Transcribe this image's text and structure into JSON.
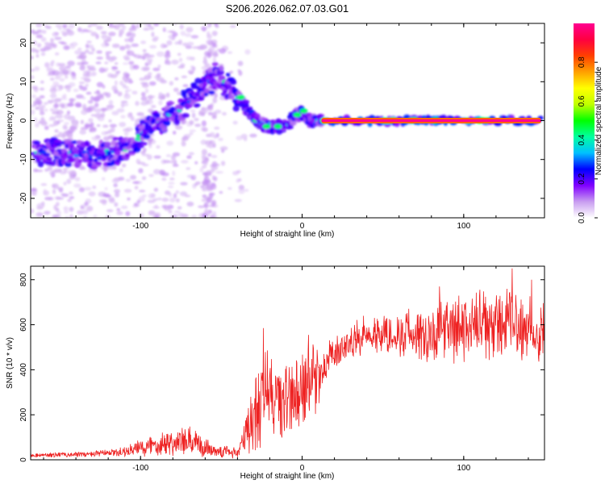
{
  "title": "S206.2026.062.07.03.G01",
  "chart_data": [
    {
      "type": "heatmap",
      "xlabel": "Height of straight line (km)",
      "ylabel": "Frequency (Hz)",
      "xlim": [
        -168,
        150
      ],
      "ylim": [
        -25,
        25
      ],
      "xticks": [
        -100,
        0,
        100
      ],
      "xtick_labels": [
        "-100",
        "0",
        "100"
      ],
      "yticks": [
        -20,
        -10,
        0,
        10,
        20
      ],
      "ytick_labels": [
        "-20",
        "-10",
        "0",
        "10",
        "20"
      ],
      "ridge": [
        {
          "x": -148,
          "y": -8
        },
        {
          "x": -140,
          "y": -8.5
        },
        {
          "x": -130,
          "y": -9
        },
        {
          "x": -120,
          "y": -8.5
        },
        {
          "x": -110,
          "y": -7
        },
        {
          "x": -100,
          "y": -4
        },
        {
          "x": -90,
          "y": -1
        },
        {
          "x": -80,
          "y": 2
        },
        {
          "x": -70,
          "y": 5
        },
        {
          "x": -60,
          "y": 9
        },
        {
          "x": -52,
          "y": 12
        },
        {
          "x": -45,
          "y": 8
        },
        {
          "x": -38,
          "y": 5
        },
        {
          "x": -30,
          "y": 1
        },
        {
          "x": -25,
          "y": -1
        },
        {
          "x": -18,
          "y": -1.5
        },
        {
          "x": -10,
          "y": -1.5
        },
        {
          "x": -5,
          "y": 1
        },
        {
          "x": 0,
          "y": 2
        },
        {
          "x": 5,
          "y": 0
        },
        {
          "x": 12,
          "y": 0
        },
        {
          "x": 150,
          "y": 0
        }
      ],
      "line_segment": {
        "x_start": 12,
        "x_end": 148,
        "y": 0,
        "level": 1.0
      },
      "colorbar": {
        "label": "Normalized spectral amplitude",
        "ticks": [
          0.0,
          0.2,
          0.4,
          0.6,
          0.8
        ],
        "tick_labels": [
          "0.0",
          "0.2",
          "0.4",
          "0.6",
          "0.8"
        ],
        "range": [
          0.0,
          1.0
        ],
        "colors": [
          "#ffffff",
          "#c89cf0",
          "#8000ff",
          "#0000ff",
          "#00c0ff",
          "#00ffa0",
          "#00ff00",
          "#c0ff00",
          "#ffff00",
          "#ffa000",
          "#ff4000",
          "#ff0040",
          "#ff0090"
        ]
      }
    },
    {
      "type": "line",
      "xlabel": "Height of straight line (km)",
      "ylabel": "SNR (10 * v/v)",
      "xlim": [
        -168,
        150
      ],
      "ylim": [
        0,
        860
      ],
      "xticks": [
        -100,
        0,
        100
      ],
      "xtick_labels": [
        "-100",
        "0",
        "100"
      ],
      "yticks": [
        0,
        200,
        400,
        600,
        800
      ],
      "ytick_labels": [
        "0",
        "200",
        "400",
        "600",
        "800"
      ],
      "color": "#ee2222",
      "envelope": [
        {
          "x": -168,
          "base": 20,
          "amp": 12
        },
        {
          "x": -130,
          "base": 25,
          "amp": 15
        },
        {
          "x": -110,
          "base": 35,
          "amp": 25
        },
        {
          "x": -95,
          "base": 60,
          "amp": 60
        },
        {
          "x": -85,
          "base": 80,
          "amp": 70
        },
        {
          "x": -70,
          "base": 75,
          "amp": 80
        },
        {
          "x": -55,
          "base": 45,
          "amp": 40
        },
        {
          "x": -40,
          "base": 30,
          "amp": 30
        },
        {
          "x": -32,
          "base": 150,
          "amp": 180
        },
        {
          "x": -24,
          "base": 300,
          "amp": 260
        },
        {
          "x": -15,
          "base": 260,
          "amp": 260
        },
        {
          "x": -5,
          "base": 280,
          "amp": 200
        },
        {
          "x": 0,
          "base": 300,
          "amp": 230
        },
        {
          "x": 8,
          "base": 360,
          "amp": 190
        },
        {
          "x": 15,
          "base": 430,
          "amp": 100
        },
        {
          "x": 25,
          "base": 500,
          "amp": 80
        },
        {
          "x": 40,
          "base": 560,
          "amp": 100
        },
        {
          "x": 60,
          "base": 560,
          "amp": 120
        },
        {
          "x": 80,
          "base": 560,
          "amp": 160
        },
        {
          "x": 100,
          "base": 580,
          "amp": 180
        },
        {
          "x": 125,
          "base": 600,
          "amp": 190
        },
        {
          "x": 150,
          "base": 580,
          "amp": 180
        }
      ],
      "spikes": [
        {
          "x": -24,
          "y": 585
        },
        {
          "x": 4,
          "y": 555
        },
        {
          "x": 85,
          "y": 770
        },
        {
          "x": 130,
          "y": 850
        },
        {
          "x": 142,
          "y": 800
        }
      ]
    }
  ]
}
